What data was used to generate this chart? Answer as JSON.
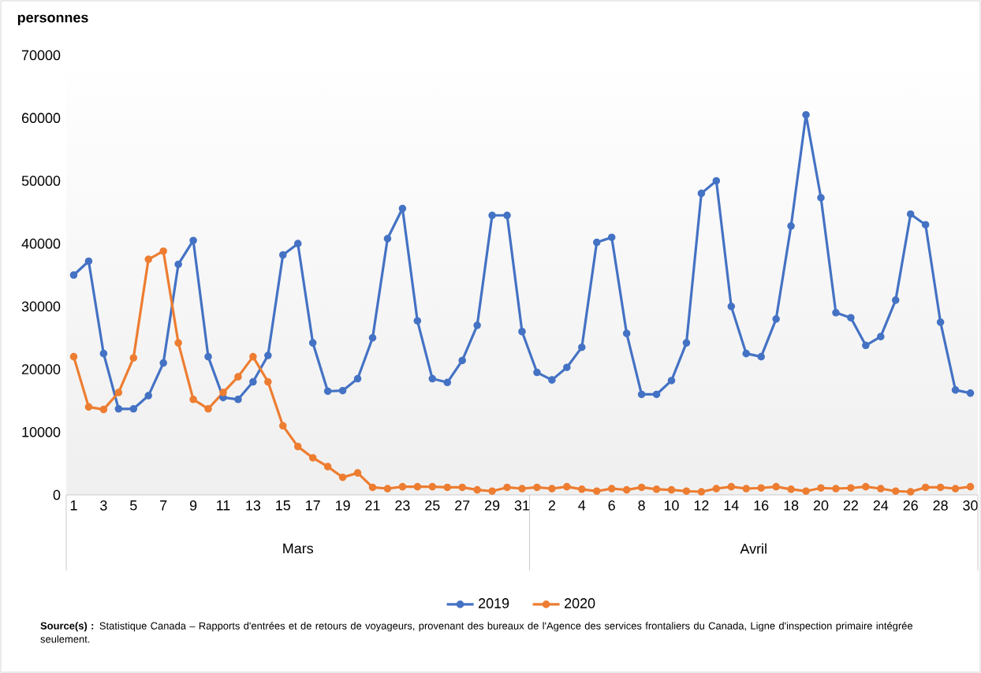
{
  "chart_data": {
    "type": "line",
    "ylabel": "personnes",
    "categories": [
      "1",
      null,
      "3",
      null,
      "5",
      null,
      "7",
      null,
      "9",
      null,
      "11",
      null,
      "13",
      null,
      "15",
      null,
      "17",
      null,
      "19",
      null,
      "21",
      null,
      "23",
      null,
      "25",
      null,
      "27",
      null,
      "29",
      null,
      "31",
      null,
      "2",
      null,
      "4",
      null,
      "6",
      null,
      "8",
      null,
      "10",
      null,
      "12",
      null,
      "14",
      null,
      "16",
      null,
      "18",
      null,
      "20",
      null,
      "22",
      null,
      "24",
      null,
      "26",
      null,
      "28",
      null,
      "30"
    ],
    "series": [
      {
        "name": "2019",
        "color": "#4472c4",
        "values": [
          35000,
          37200,
          22500,
          13700,
          13700,
          15800,
          21000,
          36700,
          40500,
          22000,
          15500,
          15200,
          18000,
          22200,
          38200,
          40000,
          24200,
          16500,
          16600,
          18500,
          25000,
          40800,
          45600,
          27700,
          18500,
          17900,
          21400,
          27000,
          44500,
          44500,
          26000,
          19500,
          18300,
          20300,
          23500,
          40200,
          41000,
          25700,
          16000,
          16000,
          18200,
          24200,
          48000,
          50000,
          30000,
          22500,
          22000,
          28000,
          42800,
          60500,
          47300,
          29000,
          28200,
          23800,
          25200,
          31000,
          44700,
          43000,
          27500,
          16700,
          16200
        ]
      },
      {
        "name": "2020",
        "color": "#ed7d31",
        "values": [
          22000,
          14000,
          13600,
          16300,
          21800,
          37500,
          38800,
          24200,
          15200,
          13700,
          16300,
          18800,
          22000,
          18000,
          11000,
          7700,
          5900,
          4500,
          2800,
          3500,
          1200,
          1000,
          1300,
          1300,
          1300,
          1200,
          1200,
          800,
          600,
          1200,
          1000,
          1200,
          1000,
          1300,
          900,
          600,
          1000,
          800,
          1200,
          900,
          800,
          600,
          500,
          1000,
          1300,
          1000,
          1100,
          1300,
          900,
          600,
          1100,
          1000,
          1100,
          1300,
          1000,
          600,
          500,
          1200,
          1200,
          1000,
          1300
        ]
      }
    ],
    "ylim": [
      0,
      70000
    ],
    "yticks": [
      0,
      10000,
      20000,
      30000,
      40000,
      50000,
      60000,
      70000
    ],
    "marker": "circle",
    "line_style": "solid",
    "legend": "bottom",
    "grid": false,
    "annotations": [
      "Mars",
      "Avril",
      "**Source(s) :** Statistique Canada – Rapports d'entrées et de retours de voyageurs, provenant des bureaux de l'Agence des services frontaliers du Canada, Ligne d'inspection primaire intégrée seulement."
    ]
  }
}
